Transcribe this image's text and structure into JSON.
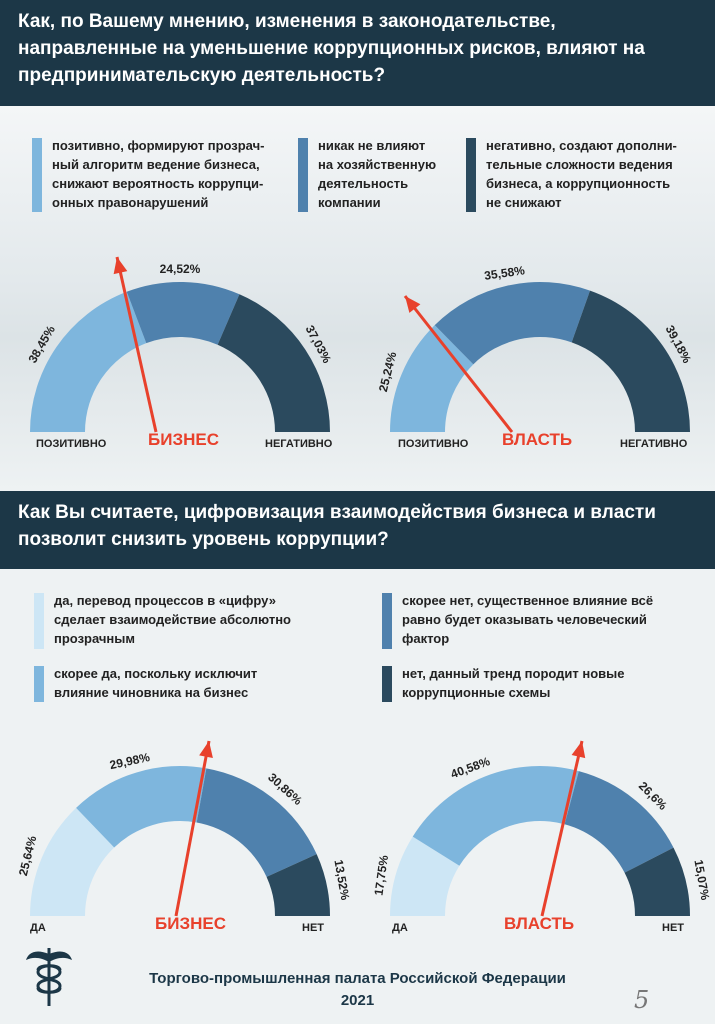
{
  "section1": {
    "question": "Как, по Вашему мнению, изменения в законодательстве, направленные на уменьшение коррупционных рисков, влияют на предпринимательскую деятельность?",
    "legend": [
      {
        "text": "позитивно, формируют прозрач-\nный алгоритм ведение бизнеса,\nснижают вероятность коррупци-\nонных правонарушений",
        "color": "#7eb6dd"
      },
      {
        "text": "никак не влияют\nна хозяйственную\nдеятельность\nкомпании",
        "color": "#4f81ad"
      },
      {
        "text": "негативно, создают дополни-\nтельные сложности ведения\nбизнеса, а коррупционность\nне снижают",
        "color": "#2b4a5e"
      }
    ]
  },
  "section2": {
    "question": "Как Вы считаете, цифровизация взаимодействия бизнеса и власти позволит снизить уровень коррупции?",
    "legend": [
      {
        "text": "да, перевод процессов в «цифру»\nсделает взаимодействие абсолютно\nпрозрачным",
        "color": "#cde6f5"
      },
      {
        "text": "скорее нет, существенное влияние всё\nравно будет оказывать человеческий\nфактор",
        "color": "#4f81ad"
      },
      {
        "text": "скорее да, поскольку исключит\nвлияние чиновника на бизнес",
        "color": "#7eb6dd"
      },
      {
        "text": "нет, данный тренд породит новые\nкоррупционные схемы",
        "color": "#2b4a5e"
      }
    ]
  },
  "chart_data": [
    {
      "type": "gauge",
      "title": "БИЗНЕС",
      "left_label": "ПОЗИТИВНО",
      "right_label": "НЕГАТИВНО",
      "categories": [
        "позитивно",
        "никак не влияют",
        "негативно"
      ],
      "values": [
        38.45,
        24.52,
        37.03
      ],
      "value_labels": [
        "38,45%",
        "24,52%",
        "37,03%"
      ],
      "colors": [
        "#7eb6dd",
        "#4f81ad",
        "#2b4a5e"
      ]
    },
    {
      "type": "gauge",
      "title": "ВЛАСТЬ",
      "left_label": "ПОЗИТИВНО",
      "right_label": "НЕГАТИВНО",
      "categories": [
        "позитивно",
        "никак не влияют",
        "негативно"
      ],
      "values": [
        25.24,
        35.58,
        39.18
      ],
      "value_labels": [
        "25,24%",
        "35,58%",
        "39,18%"
      ],
      "colors": [
        "#7eb6dd",
        "#4f81ad",
        "#2b4a5e"
      ]
    },
    {
      "type": "gauge",
      "title": "БИЗНЕС",
      "left_label": "ДА",
      "right_label": "НЕТ",
      "categories": [
        "да",
        "скорее да",
        "скорее нет",
        "нет"
      ],
      "values": [
        25.64,
        29.98,
        30.86,
        13.52
      ],
      "value_labels": [
        "25,64%",
        "29,98%",
        "30,86%",
        "13,52%"
      ],
      "colors": [
        "#cde6f5",
        "#7eb6dd",
        "#4f81ad",
        "#2b4a5e"
      ]
    },
    {
      "type": "gauge",
      "title": "ВЛАСТЬ",
      "left_label": "ДА",
      "right_label": "НЕТ",
      "categories": [
        "да",
        "скорее да",
        "скорее нет",
        "нет"
      ],
      "values": [
        17.75,
        40.58,
        26.6,
        15.07
      ],
      "value_labels": [
        "17,75%",
        "40,58%",
        "26,6%",
        "15,07%"
      ],
      "colors": [
        "#cde6f5",
        "#7eb6dd",
        "#4f81ad",
        "#2b4a5e"
      ]
    }
  ],
  "footer": {
    "org": "Торгово-промышленная палата Российской Федерации",
    "year": "2021"
  },
  "page_number": "5",
  "accent_color": "#e8412c"
}
